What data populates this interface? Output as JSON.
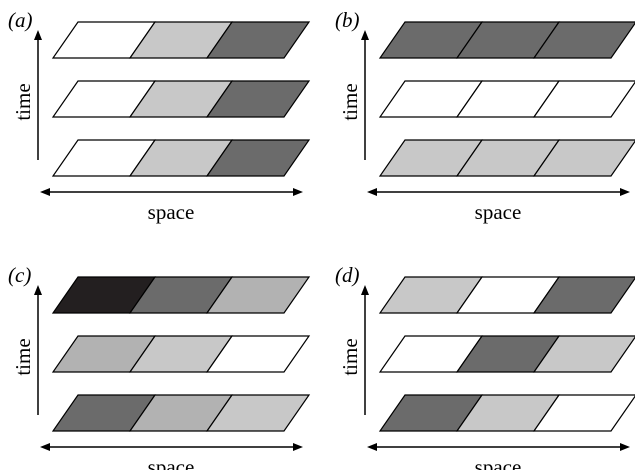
{
  "colors": {
    "white": "#ffffff",
    "light": "#c8c8c8",
    "mid": "#b2b2b2",
    "dark": "#6b6b6b",
    "black": "#231f20"
  },
  "panels": [
    {
      "id": "a",
      "label": "(a)",
      "time_label": "time",
      "space_label": "space",
      "rows_top_to_bottom": [
        [
          "white",
          "light",
          "dark"
        ],
        [
          "white",
          "light",
          "dark"
        ],
        [
          "white",
          "light",
          "dark"
        ]
      ]
    },
    {
      "id": "b",
      "label": "(b)",
      "time_label": "time",
      "space_label": "space",
      "rows_top_to_bottom": [
        [
          "dark",
          "dark",
          "dark"
        ],
        [
          "white",
          "white",
          "white"
        ],
        [
          "light",
          "light",
          "light"
        ]
      ]
    },
    {
      "id": "c",
      "label": "(c)",
      "time_label": "time",
      "space_label": "space",
      "rows_top_to_bottom": [
        [
          "black",
          "dark",
          "mid"
        ],
        [
          "mid",
          "light",
          "white"
        ],
        [
          "dark",
          "mid",
          "light"
        ]
      ]
    },
    {
      "id": "d",
      "label": "(d)",
      "time_label": "time",
      "space_label": "space",
      "rows_top_to_bottom": [
        [
          "light",
          "white",
          "dark"
        ],
        [
          "white",
          "dark",
          "light"
        ],
        [
          "dark",
          "light",
          "white"
        ]
      ]
    }
  ]
}
